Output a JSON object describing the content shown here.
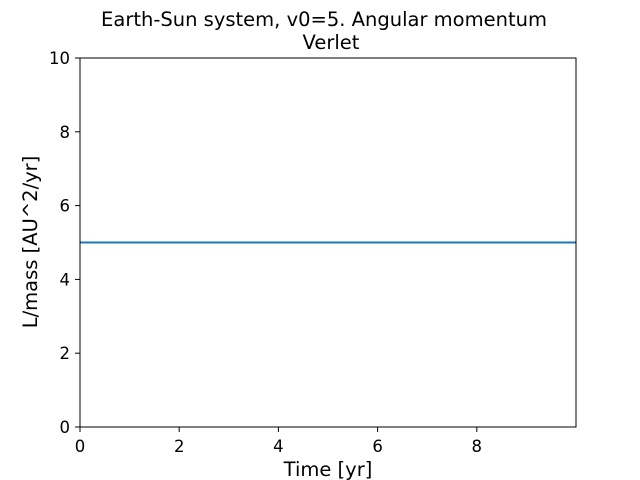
{
  "chart_data": {
    "type": "line",
    "title": "Earth-Sun system, v0=5. Angular momentum",
    "subtitle": "Verlet",
    "xlabel": "Time [yr]",
    "ylabel": "L/mass [AU^2/yr]",
    "xlim": [
      0,
      10
    ],
    "ylim": [
      0,
      10
    ],
    "xticks": [
      0,
      2,
      4,
      6,
      8
    ],
    "yticks": [
      0,
      2,
      4,
      6,
      8,
      10
    ],
    "grid": false,
    "series": [
      {
        "color": "#1f77b4",
        "x": [
          0,
          10
        ],
        "y": [
          5,
          5
        ]
      }
    ]
  }
}
